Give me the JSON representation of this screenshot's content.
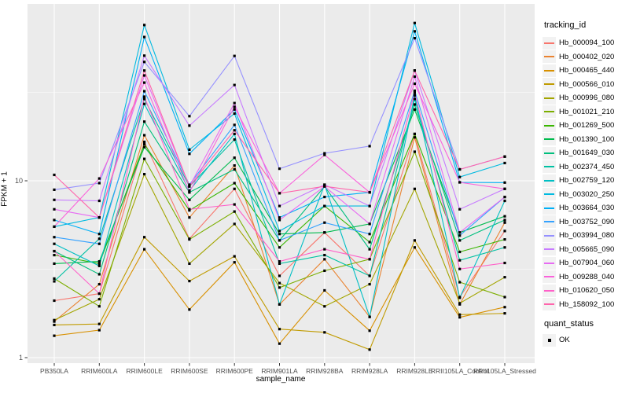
{
  "chart_data": {
    "type": "line",
    "xlabel": "sample_name",
    "ylabel": "FPKM + 1",
    "y_scale": "log10",
    "ylim": [
      1,
      100
    ],
    "grid": "on",
    "panel_color": "#EBEBEB",
    "grid_color": "#FFFFFF",
    "tick_label_color": "#4D4D4D",
    "marker": "black-square",
    "marker_color": "#000000",
    "legend_position": "right",
    "y_ticks": [
      {
        "label": "1",
        "value": 1
      },
      {
        "label": "10",
        "value": 10
      }
    ],
    "y_minor_ticks": [
      3.162,
      31.62
    ],
    "categories": [
      "PB350LA",
      "RRIM600LA",
      "RRIM600LE",
      "RRIM600SE",
      "RRIM600PE",
      "RRIM901LA",
      "RRIM928BA",
      "RRIM928LA",
      "RRIM928LE",
      "RRII105LA_Control",
      "RRII105LA_Stressed"
    ],
    "legend": {
      "title": "tracking_id",
      "status_title": "quant_status",
      "status_label": "OK"
    },
    "series": [
      {
        "name": "Hb_000094_100",
        "color": "#F8766D",
        "values": [
          2.1,
          2.3,
          16.6,
          4.7,
          9.0,
          2.9,
          5.1,
          2.9,
          18.4,
          2.2,
          5.2
        ]
      },
      {
        "name": "Hb_000402_020",
        "color": "#EA8331",
        "values": [
          1.6,
          2.6,
          18.1,
          6.2,
          12.2,
          2.0,
          3.6,
          1.7,
          17.6,
          2.0,
          5.8
        ]
      },
      {
        "name": "Hb_000465_440",
        "color": "#D89000",
        "values": [
          1.33,
          1.43,
          4.1,
          1.87,
          3.46,
          1.2,
          2.4,
          1.42,
          4.2,
          1.69,
          1.93
        ]
      },
      {
        "name": "Hb_000566_010",
        "color": "#C09B00",
        "values": [
          1.53,
          1.55,
          4.8,
          2.71,
          3.74,
          1.45,
          1.39,
          1.11,
          4.6,
          1.75,
          1.78
        ]
      },
      {
        "name": "Hb_000996_080",
        "color": "#A3A500",
        "values": [
          1.63,
          2.14,
          10.9,
          3.4,
          5.7,
          2.64,
          1.95,
          2.6,
          9.0,
          2.03,
          2.85
        ]
      },
      {
        "name": "Hb_001021_210",
        "color": "#7CAE00",
        "values": [
          2.8,
          1.95,
          13.3,
          4.66,
          6.7,
          2.49,
          3.1,
          3.6,
          14.6,
          2.67,
          2.2
        ]
      },
      {
        "name": "Hb_001269_500",
        "color": "#39B600",
        "values": [
          3.8,
          3.4,
          16.1,
          6.8,
          9.7,
          4.2,
          7.2,
          4.5,
          18.4,
          3.96,
          4.66
        ]
      },
      {
        "name": "Hb_001390_100",
        "color": "#00BB4E",
        "values": [
          3.4,
          3.5,
          15.5,
          7.8,
          13.5,
          5.0,
          5.1,
          5.7,
          25.3,
          5.1,
          6.3
        ]
      },
      {
        "name": "Hb_001649_030",
        "color": "#00BF7D",
        "values": [
          4.0,
          2.96,
          21.6,
          8.6,
          11.6,
          4.6,
          9.3,
          4.1,
          27.0,
          4.6,
          6.0
        ]
      },
      {
        "name": "Hb_002374_450",
        "color": "#00C1A3",
        "values": [
          2.7,
          4.7,
          29.0,
          9.3,
          17.1,
          3.4,
          3.8,
          2.9,
          29.0,
          3.55,
          4.2
        ]
      },
      {
        "name": "Hb_002759_120",
        "color": "#00BFC4",
        "values": [
          4.4,
          3.3,
          27.2,
          8.8,
          18.4,
          2.0,
          9.5,
          1.7,
          30.4,
          2.18,
          7.7
        ]
      },
      {
        "name": "Hb_003020_250",
        "color": "#00BAE0",
        "values": [
          5.5,
          6.2,
          76,
          15.0,
          24.0,
          5.2,
          7.2,
          7.2,
          78,
          10.5,
          12.6
        ]
      },
      {
        "name": "Hb_003664_030",
        "color": "#00B0F6",
        "values": [
          6.0,
          5.0,
          65,
          14.2,
          25.3,
          6.2,
          8.1,
          8.6,
          70,
          9.8,
          9.77
        ]
      },
      {
        "name": "Hb_003752_090",
        "color": "#35A2FF",
        "values": [
          4.8,
          4.4,
          32.1,
          9.5,
          20.7,
          4.6,
          5.8,
          5.0,
          32.3,
          4.9,
          8.1
        ]
      },
      {
        "name": "Hb_003994_080",
        "color": "#9590FF",
        "values": [
          8.9,
          9.7,
          47,
          23.2,
          50.8,
          11.7,
          14.3,
          15.7,
          64,
          11.6,
          13.7
        ]
      },
      {
        "name": "Hb_005665_090",
        "color": "#C77CFF",
        "values": [
          7.8,
          7.7,
          51,
          20.5,
          34.8,
          7.2,
          9.5,
          7.2,
          42,
          6.9,
          9.0
        ]
      },
      {
        "name": "Hb_007904_060",
        "color": "#E76BF3",
        "values": [
          6.9,
          6.2,
          39.4,
          9.3,
          27.5,
          6.0,
          9.3,
          5.7,
          38.8,
          5.1,
          8.1
        ]
      },
      {
        "name": "Hb_009288_040",
        "color": "#FA62DB",
        "values": [
          5.5,
          10.3,
          35.9,
          8.6,
          26.2,
          8.5,
          14.0,
          8.6,
          35.4,
          9.8,
          9.0
        ]
      },
      {
        "name": "Hb_010620_050",
        "color": "#FF61C9",
        "values": [
          4.0,
          2.3,
          29.9,
          6.9,
          7.35,
          3.5,
          4.1,
          3.6,
          31.4,
          3.17,
          3.43
        ]
      },
      {
        "name": "Hb_158092_100",
        "color": "#FF65AC",
        "values": [
          10.8,
          6.2,
          42,
          9.3,
          19.3,
          8.5,
          9.3,
          8.6,
          42,
          11.6,
          13.7
        ]
      }
    ]
  }
}
